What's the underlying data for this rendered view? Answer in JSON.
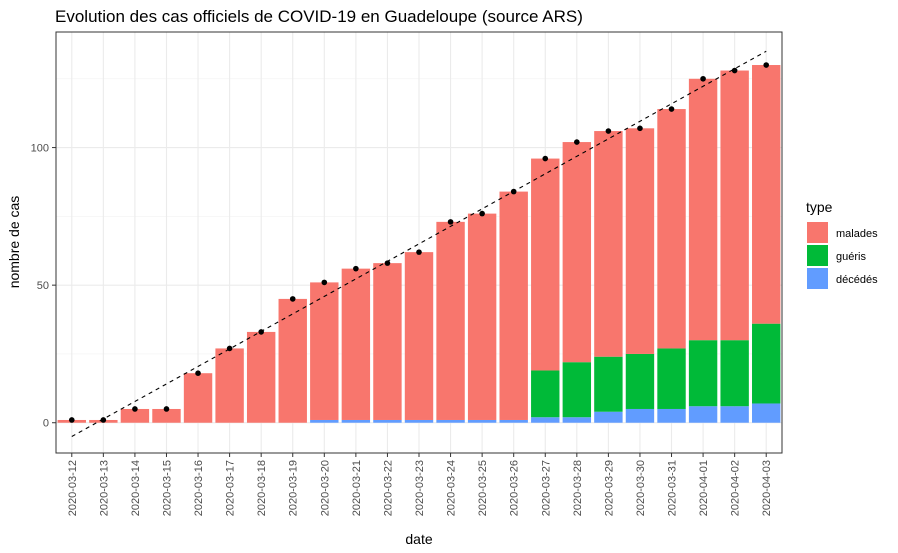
{
  "chart_data": {
    "type": "bar",
    "title": "Evolution des cas officiels de COVID-19 en Guadeloupe (source ARS)",
    "xlabel": "date",
    "ylabel": "nombre de cas",
    "ylim": [
      -11,
      142
    ],
    "yticks": [
      0,
      50,
      100
    ],
    "grid": true,
    "stacked": true,
    "legend": {
      "title": "type",
      "placement": "right"
    },
    "categories": [
      "2020-03-12",
      "2020-03-13",
      "2020-03-14",
      "2020-03-15",
      "2020-03-16",
      "2020-03-17",
      "2020-03-18",
      "2020-03-19",
      "2020-03-20",
      "2020-03-21",
      "2020-03-22",
      "2020-03-23",
      "2020-03-24",
      "2020-03-25",
      "2020-03-26",
      "2020-03-27",
      "2020-03-28",
      "2020-03-29",
      "2020-03-30",
      "2020-03-31",
      "2020-04-01",
      "2020-04-02",
      "2020-04-03"
    ],
    "series": [
      {
        "name": "décédés",
        "color": "#619CFF",
        "values": [
          0,
          0,
          0,
          0,
          0,
          0,
          0,
          0,
          1,
          1,
          1,
          1,
          1,
          1,
          1,
          2,
          2,
          4,
          5,
          5,
          6,
          6,
          7
        ]
      },
      {
        "name": "guéris",
        "color": "#00BA38",
        "values": [
          0,
          0,
          0,
          0,
          0,
          0,
          0,
          0,
          0,
          0,
          0,
          0,
          0,
          0,
          0,
          17,
          20,
          20,
          20,
          22,
          24,
          24,
          29
        ]
      },
      {
        "name": "malades",
        "color": "#F8766D",
        "values": [
          1,
          1,
          5,
          5,
          18,
          27,
          33,
          45,
          50,
          55,
          57,
          61,
          72,
          75,
          83,
          77,
          80,
          82,
          82,
          87,
          95,
          98,
          94
        ]
      }
    ],
    "legend_order": [
      "malades",
      "guéris",
      "décédés"
    ],
    "points": {
      "color": "#000000",
      "values": [
        1,
        1,
        5,
        5,
        18,
        27,
        33,
        45,
        51,
        56,
        58,
        62,
        73,
        76,
        84,
        96,
        102,
        106,
        107,
        114,
        125,
        128,
        130
      ]
    },
    "trend_line": {
      "style": "dashed",
      "color": "#000000",
      "start": [
        1,
        -5
      ],
      "end": [
        23,
        135
      ]
    }
  }
}
